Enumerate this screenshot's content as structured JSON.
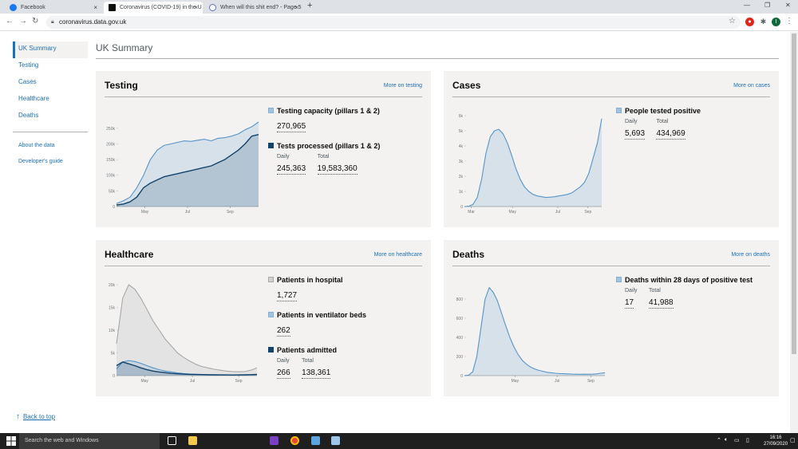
{
  "browser": {
    "tabs": [
      {
        "title": "Facebook",
        "close": "×"
      },
      {
        "title": "Coronavirus (COVID-19) in the U",
        "close": "×"
      },
      {
        "title": "When will this shit end? - Page 5",
        "close": "×"
      }
    ],
    "new_tab": "+",
    "address": "coronavirus.data.gov.uk",
    "window_min": "—",
    "window_max": "❐",
    "window_close": "✕",
    "profile_initial": "I"
  },
  "sidebar": {
    "items": [
      {
        "label": "UK Summary"
      },
      {
        "label": "Testing"
      },
      {
        "label": "Cases"
      },
      {
        "label": "Healthcare"
      },
      {
        "label": "Deaths"
      }
    ],
    "secondary": [
      {
        "label": "About the data"
      },
      {
        "label": "Developer's guide"
      }
    ]
  },
  "page_title": "UK Summary",
  "testing": {
    "title": "Testing",
    "more": "More on testing",
    "metrics": [
      {
        "label": "Testing capacity (pillars 1 & 2)",
        "values": [
          {
            "label": "",
            "value": "270,965"
          }
        ]
      },
      {
        "label": "Tests processed (pillars 1 & 2)",
        "values": [
          {
            "label": "Daily",
            "value": "245,363"
          },
          {
            "label": "Total",
            "value": "19,583,360"
          }
        ]
      }
    ]
  },
  "cases": {
    "title": "Cases",
    "more": "More on cases",
    "metrics": [
      {
        "label": "People tested positive",
        "values": [
          {
            "label": "Daily",
            "value": "5,693"
          },
          {
            "label": "Total",
            "value": "434,969"
          }
        ]
      }
    ]
  },
  "healthcare": {
    "title": "Healthcare",
    "more": "More on healthcare",
    "metrics": [
      {
        "label": "Patients in hospital",
        "values": [
          {
            "label": "",
            "value": "1,727"
          }
        ]
      },
      {
        "label": "Patients in ventilator beds",
        "values": [
          {
            "label": "",
            "value": "262"
          }
        ]
      },
      {
        "label": "Patients admitted",
        "values": [
          {
            "label": "Daily",
            "value": "266"
          },
          {
            "label": "Total",
            "value": "138,361"
          }
        ]
      }
    ]
  },
  "deaths": {
    "title": "Deaths",
    "more": "More on deaths",
    "metrics": [
      {
        "label": "Deaths within 28 days of positive test",
        "values": [
          {
            "label": "Daily",
            "value": "17"
          },
          {
            "label": "Total",
            "value": "41,988"
          }
        ]
      }
    ]
  },
  "back_to_top": "Back to top",
  "taskbar": {
    "search_placeholder": "Search the web and Windows",
    "time": "16:16",
    "date": "27/09/2020"
  },
  "colors": {
    "link": "#1d70b8",
    "dark_series": "#12436d",
    "light_series": "#5694ca",
    "fill": "#dbe6f2",
    "grey_series": "#a8a8a8"
  },
  "chart_data": [
    {
      "type": "line",
      "id": "testing",
      "x_ticks": [
        "May",
        "Jul",
        "Sep"
      ],
      "y_ticks": [
        "250k",
        "200k",
        "150k",
        "100k",
        "50k",
        "0"
      ],
      "ylim": [
        0,
        270000
      ],
      "series": [
        {
          "name": "Testing capacity (pillars 1 & 2)",
          "color": "#5694ca",
          "values": [
            10000,
            18000,
            30000,
            60000,
            100000,
            150000,
            180000,
            195000,
            200000,
            205000,
            210000,
            208000,
            212000,
            215000,
            210000,
            218000,
            220000,
            225000,
            232000,
            245000,
            255000,
            270000
          ]
        },
        {
          "name": "Tests processed (pillars 1 & 2)",
          "color": "#12436d",
          "values": [
            5000,
            8000,
            15000,
            30000,
            60000,
            75000,
            85000,
            95000,
            100000,
            105000,
            110000,
            115000,
            120000,
            125000,
            130000,
            140000,
            150000,
            165000,
            180000,
            200000,
            225000,
            230000
          ]
        }
      ]
    },
    {
      "type": "area",
      "id": "cases",
      "x_ticks": [
        "Mar",
        "May",
        "Jul",
        "Sep"
      ],
      "y_ticks": [
        "6k",
        "5k",
        "4k",
        "3k",
        "2k",
        "1k",
        "0"
      ],
      "ylim": [
        0,
        6000
      ],
      "series": [
        {
          "name": "People tested positive",
          "color": "#5694ca",
          "values": [
            0,
            20,
            150,
            600,
            1800,
            3500,
            4600,
            5000,
            5100,
            4800,
            4200,
            3400,
            2500,
            1800,
            1300,
            1000,
            800,
            700,
            650,
            600,
            620,
            650,
            700,
            750,
            800,
            900,
            1100,
            1300,
            1600,
            2200,
            3200,
            4200,
            5800
          ]
        }
      ]
    },
    {
      "type": "line",
      "id": "healthcare",
      "x_ticks": [
        "May",
        "Jul",
        "Sep"
      ],
      "y_ticks": [
        "20k",
        "15k",
        "10k",
        "5k",
        "0"
      ],
      "ylim": [
        0,
        20000
      ],
      "series": [
        {
          "name": "Patients in hospital",
          "color": "#a8a8a8",
          "values": [
            7000,
            17000,
            20000,
            19000,
            17000,
            14500,
            12000,
            10000,
            8000,
            6500,
            5000,
            4000,
            3200,
            2500,
            2000,
            1700,
            1400,
            1200,
            1000,
            900,
            850,
            900,
            1200,
            1727
          ]
        },
        {
          "name": "Patients in ventilator beds",
          "color": "#5694ca",
          "values": [
            1500,
            3000,
            3300,
            3100,
            2700,
            2200,
            1700,
            1300,
            1000,
            800,
            600,
            450,
            350,
            300,
            250,
            220,
            200,
            190,
            180,
            170,
            160,
            170,
            200,
            262
          ]
        },
        {
          "name": "Patients admitted",
          "color": "#12436d",
          "values": [
            2200,
            3000,
            2600,
            2200,
            1700,
            1300,
            1000,
            800,
            650,
            500,
            400,
            330,
            280,
            250,
            220,
            200,
            180,
            160,
            150,
            145,
            150,
            170,
            210,
            266
          ]
        }
      ]
    },
    {
      "type": "area",
      "id": "deaths",
      "x_ticks": [
        "May",
        "Jul",
        "Sep"
      ],
      "y_ticks": [
        "800",
        "600",
        "400",
        "200",
        "0"
      ],
      "ylim": [
        0,
        950
      ],
      "series": [
        {
          "name": "Deaths within 28 days of positive test",
          "color": "#5694ca",
          "values": [
            0,
            5,
            40,
            200,
            500,
            800,
            920,
            870,
            780,
            650,
            520,
            400,
            300,
            220,
            160,
            120,
            90,
            70,
            55,
            45,
            35,
            30,
            25,
            22,
            20,
            18,
            16,
            15,
            14,
            15,
            14,
            15,
            18,
            25,
            30
          ]
        }
      ]
    }
  ]
}
